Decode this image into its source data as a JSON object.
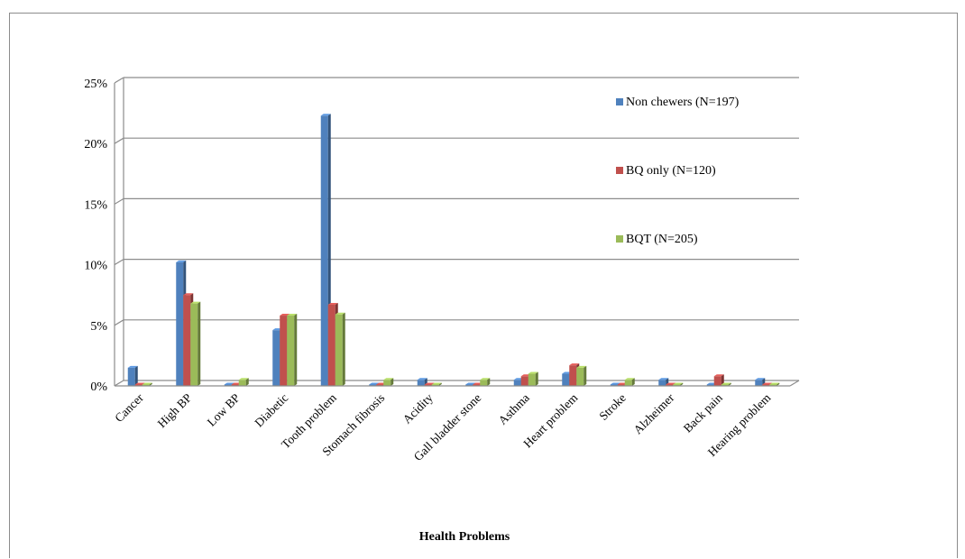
{
  "chart_data": {
    "type": "bar",
    "title": "",
    "xlabel": "Health Problems",
    "ylabel": "",
    "ylim": [
      0,
      25
    ],
    "yticks": [
      "0%",
      "5%",
      "10%",
      "15%",
      "20%",
      "25%"
    ],
    "grid": true,
    "legend_position": "right",
    "categories": [
      "Cancer",
      "High BP",
      "Low BP",
      "Diabetic",
      "Tooth problem",
      "Stomach fibrosis",
      "Acidity",
      "Gall bladder stone",
      "Asthma",
      "Heart problem",
      "Stroke",
      "Alzheimer",
      "Back pain",
      "Hearing problem"
    ],
    "series": [
      {
        "name": "Non chewers (N=197)",
        "color": "#4f81bd",
        "values": [
          1.5,
          10.2,
          0,
          4.6,
          22.3,
          0,
          0.5,
          0,
          0.5,
          1.0,
          0,
          0.5,
          0,
          0.5
        ]
      },
      {
        "name": "BQ  only (N=120)",
        "color": "#c0504d",
        "values": [
          0,
          7.5,
          0,
          5.8,
          6.7,
          0,
          0,
          0,
          0.8,
          1.7,
          0,
          0,
          0.8,
          0
        ]
      },
      {
        "name": "BQT (N=205)",
        "color": "#9bbb59",
        "values": [
          0,
          6.8,
          0.5,
          5.8,
          5.9,
          0.5,
          0,
          0.5,
          1.0,
          1.5,
          0.5,
          0,
          0,
          0
        ]
      }
    ]
  }
}
